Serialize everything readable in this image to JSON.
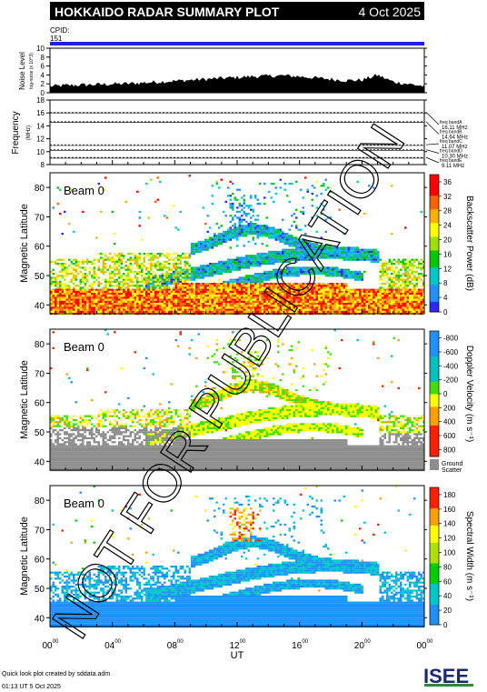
{
  "header": {
    "title": "HOKKAIDO RADAR SUMMARY PLOT",
    "date": "4 Oct 2025",
    "cpid_label": "CPID:",
    "cpid_value": "151"
  },
  "footer": {
    "credit": "Quick look plot created by sddata.adm",
    "timestamp": "01:13 UT  5 Oct 2025",
    "logo_text": "ISEE"
  },
  "watermark": "NOT FOR PUBLICATION",
  "colors": {
    "header_bg": "#000000",
    "cpid_bar": "#1e1ef0",
    "ground_scatter": "#8c8c8c"
  },
  "chart_data": [
    {
      "type": "area",
      "name": "noise",
      "ylabel": "Noise Level",
      "ylabel_sub": "log-noise (x 10^3)",
      "ylim": [
        0,
        10
      ],
      "yticks": [
        "0",
        "2",
        "4",
        "6",
        "8",
        "10"
      ],
      "x": [
        0,
        1,
        2,
        3,
        4,
        5,
        6,
        7,
        8,
        9,
        10,
        11,
        12,
        13,
        14,
        15,
        16,
        17,
        18,
        19,
        20,
        21,
        22,
        23,
        24
      ],
      "values": [
        1.0,
        1.2,
        1.3,
        1.4,
        1.5,
        1.6,
        1.8,
        2.0,
        2.2,
        2.4,
        2.6,
        2.8,
        3.0,
        3.2,
        3.3,
        3.4,
        3.2,
        2.9,
        2.6,
        2.3,
        2.4,
        3.5,
        2.0,
        1.5,
        1.0
      ]
    },
    {
      "type": "line",
      "name": "frequency",
      "ylabel": "Frequency",
      "ylabel_sub": "(MHz)",
      "ylim": [
        8,
        18
      ],
      "yticks": [
        "8",
        "10",
        "12",
        "14",
        "16",
        "18"
      ],
      "bands": [
        {
          "label": "freq bandA",
          "value_text": "16.11 MHz",
          "mhz": 16.11
        },
        {
          "label": "freq bandB",
          "value_text": "14.64 MHz",
          "mhz": 14.64
        },
        {
          "label": "freq bandC",
          "value_text": "11.07 MHz",
          "mhz": 11.07
        },
        {
          "label": "freq bandD",
          "value_text": "10.30 MHz",
          "mhz": 10.3
        },
        {
          "label": "freq bandE",
          "value_text": "9.11 MHz",
          "mhz": 9.11
        }
      ]
    },
    {
      "type": "heatmap",
      "name": "power",
      "beam_label": "Beam  0",
      "ylabel": "Magnetic Latitude",
      "ylim": [
        37,
        85
      ],
      "yticks": [
        40,
        50,
        60,
        70,
        80
      ],
      "colorbar_label": "Backscatter Power (dB)",
      "colorbar_ticks": [
        "0",
        "4",
        "8",
        "12",
        "16",
        "20",
        "24",
        "28",
        "32",
        "36"
      ],
      "colorbar_range": [
        0,
        38
      ]
    },
    {
      "type": "heatmap",
      "name": "velocity",
      "beam_label": "Beam  0",
      "ylabel": "Magnetic Latitude",
      "ylim": [
        37,
        85
      ],
      "yticks": [
        40,
        50,
        60,
        70,
        80
      ],
      "colorbar_label": "Doppler Velocity (m s⁻¹)",
      "colorbar_ticks": [
        "800",
        "600",
        "400",
        "200",
        "0",
        "-200",
        "-400",
        "-600",
        "-800"
      ],
      "colorbar_range": [
        900,
        -900
      ],
      "ground_label_1": "Ground",
      "ground_label_2": "Scatter"
    },
    {
      "type": "heatmap",
      "name": "width",
      "beam_label": "Beam  0",
      "ylabel": "Magnetic Latitude",
      "ylim": [
        37,
        85
      ],
      "yticks": [
        40,
        50,
        60,
        70,
        80
      ],
      "colorbar_label": "Spectral Width (m s⁻¹)",
      "colorbar_ticks": [
        "0",
        "20",
        "40",
        "60",
        "80",
        "100",
        "120",
        "140",
        "160",
        "180"
      ],
      "colorbar_range": [
        0,
        190
      ]
    }
  ],
  "xaxis": {
    "label": "UT",
    "ticks": [
      "00",
      "04",
      "08",
      "12",
      "16",
      "20",
      "00"
    ],
    "tick_sup": "00",
    "range_hours": [
      0,
      24
    ]
  }
}
